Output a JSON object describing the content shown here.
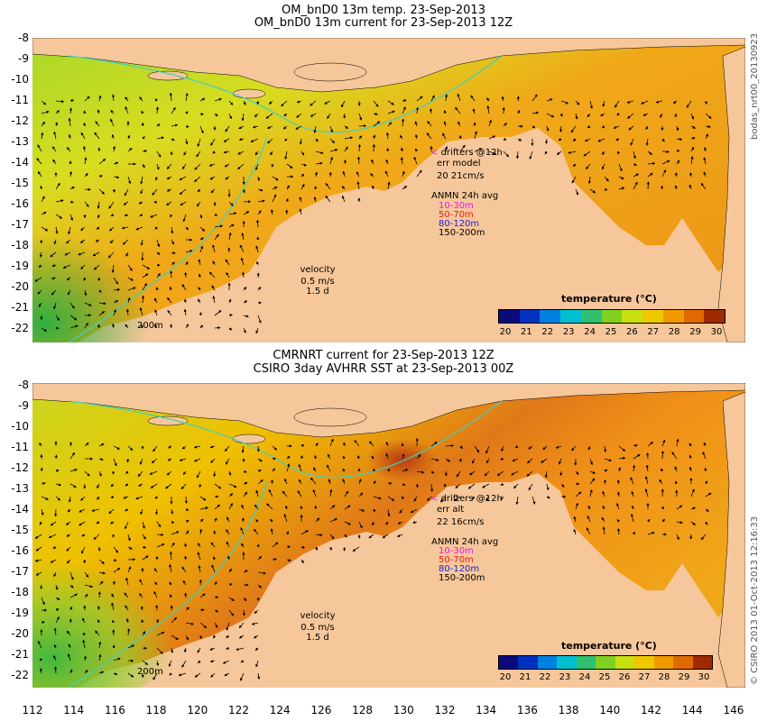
{
  "top": {
    "title_line1": "OM_bnD0 13m temp. 23-Sep-2013",
    "title_line2": "OM_bnD0 13m current for 23-Sep-2013 12Z",
    "side_label": "bodas_nrt00_20130923",
    "legend": {
      "drifters": "drifters @12h",
      "err_label": "err model",
      "err_value": "20 21cm/s",
      "anmn_title": "ANMN 24h avg",
      "depths": [
        "10-30m",
        "50-70m",
        "80-120m",
        "150-200m"
      ]
    },
    "velocity": {
      "label": "velocity",
      "speed": "0.5 m/s",
      "time": "1.5 d"
    },
    "isobath": "200m",
    "colorbar": {
      "title": "temperature (°C)",
      "labels": [
        "20",
        "21",
        "22",
        "23",
        "24",
        "25",
        "26",
        "27",
        "28",
        "29",
        "30"
      ]
    }
  },
  "bottom": {
    "title_line1": "CMRNRT current for 23-Sep-2013 12Z",
    "title_line2": "CSIRO 3day AVHRR SST at 23-Sep-2013 00Z",
    "side_label": "© CSIRO 2013   01-Oct-2013 12:16:33",
    "legend": {
      "drifters": "drifters @12h",
      "err_label": "err alt",
      "err_value": "22 16cm/s",
      "anmn_title": "ANMN 24h avg",
      "depths": [
        "10-30m",
        "50-70m",
        "80-120m",
        "150-200m"
      ]
    },
    "velocity": {
      "label": "velocity",
      "speed": "0.5 m/s",
      "time": "1.5 d"
    },
    "isobath": "200m",
    "colorbar": {
      "title": "temperature (°C)",
      "labels": [
        "20",
        "21",
        "22",
        "23",
        "24",
        "25",
        "26",
        "27",
        "28",
        "29",
        "30"
      ]
    }
  },
  "axes": {
    "lat_ticks": [
      "-8",
      "-9",
      "-10",
      "-11",
      "-12",
      "-13",
      "-14",
      "-15",
      "-16",
      "-17",
      "-18",
      "-19",
      "-20",
      "-21",
      "-22"
    ],
    "lon_ticks": [
      "112",
      "114",
      "116",
      "118",
      "120",
      "122",
      "124",
      "126",
      "128",
      "130",
      "132",
      "134",
      "136",
      "138",
      "140",
      "142",
      "144",
      "146"
    ]
  },
  "colors": {
    "land": "#f6c79a",
    "depth_colors": [
      "#e020e0",
      "#e02020",
      "#2020e0",
      "#000000"
    ],
    "colorbar_stops": [
      "#0a0a7a",
      "#0030c0",
      "#0080e0",
      "#00c0d0",
      "#30c070",
      "#80d020",
      "#c8e010",
      "#f0c800",
      "#f09a00",
      "#e06a00",
      "#a02a00"
    ]
  }
}
